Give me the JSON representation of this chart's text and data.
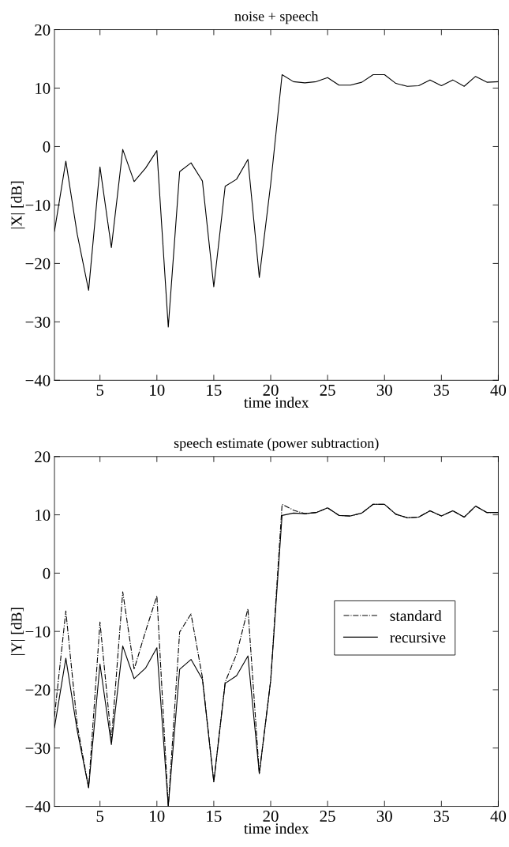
{
  "chart_data": [
    {
      "type": "line",
      "title": "noise + speech",
      "xlabel": "time index",
      "ylabel": "|X| [dB]",
      "x": [
        1,
        2,
        3,
        4,
        5,
        6,
        7,
        8,
        9,
        10,
        11,
        12,
        13,
        14,
        15,
        16,
        17,
        18,
        19,
        20,
        21,
        22,
        23,
        24,
        25,
        26,
        27,
        28,
        29,
        30,
        31,
        32,
        33,
        34,
        35,
        36,
        37,
        38,
        39,
        40
      ],
      "series": [
        {
          "color": "#000000",
          "line_style": "solid",
          "values": [
            -14.5,
            -2.5,
            -15,
            -24.6,
            -3.5,
            -17.3,
            -0.5,
            -6,
            -3.7,
            -0.7,
            -30.9,
            -4.3,
            -2.8,
            -5.9,
            -24,
            -6.8,
            -5.6,
            -2.2,
            -22.4,
            -6.4,
            12.3,
            11.1,
            10.9,
            11.1,
            11.8,
            10.5,
            10.5,
            11.0,
            12.3,
            12.3,
            10.8,
            10.3,
            10.4,
            11.4,
            10.4,
            11.4,
            10.3,
            12.0,
            11.0,
            11.1
          ]
        }
      ],
      "xlim": [
        1,
        40
      ],
      "xticks": [
        5,
        10,
        15,
        20,
        25,
        30,
        35,
        40
      ],
      "ylim": [
        -40,
        20
      ],
      "yticks": [
        -40,
        -30,
        -20,
        -10,
        0,
        10,
        20
      ],
      "grid": false,
      "legend": false
    },
    {
      "type": "line",
      "title": "speech estimate (power subtraction)",
      "xlabel": "time index",
      "ylabel": "|Y| [dB]",
      "x": [
        1,
        2,
        3,
        4,
        5,
        6,
        7,
        8,
        9,
        10,
        11,
        12,
        13,
        14,
        15,
        16,
        17,
        18,
        19,
        20,
        21,
        22,
        23,
        24,
        25,
        26,
        27,
        28,
        29,
        30,
        31,
        32,
        33,
        34,
        35,
        36,
        37,
        38,
        39,
        40
      ],
      "series": [
        {
          "name": "standard",
          "color": "#000000",
          "line_style": "dashdot",
          "values": [
            -24.6,
            -6.5,
            -26,
            -36.8,
            -8.4,
            -28.7,
            -3.2,
            -16.5,
            -10,
            -3.9,
            -40,
            -10.1,
            -7,
            -17.9,
            -35.8,
            -18.7,
            -13.9,
            -6.1,
            -34.4,
            -18.4,
            11.8,
            10.8,
            10.2,
            10.4,
            11.2,
            9.9,
            9.8,
            10.3,
            11.8,
            11.8,
            10.1,
            9.5,
            9.6,
            10.7,
            9.8,
            10.7,
            9.6,
            11.5,
            10.4,
            10.4
          ]
        },
        {
          "name": "recursive",
          "color": "#000000",
          "line_style": "solid",
          "values": [
            -26.5,
            -14.6,
            -27,
            -36.8,
            -15.6,
            -29.4,
            -12.5,
            -18.1,
            -16.3,
            -12.8,
            -40,
            -16.5,
            -14.8,
            -18.2,
            -35.8,
            -18.9,
            -17.6,
            -14.2,
            -34.4,
            -18.4,
            9.9,
            10.3,
            10.2,
            10.4,
            11.2,
            9.9,
            9.8,
            10.3,
            11.8,
            11.8,
            10.1,
            9.5,
            9.6,
            10.7,
            9.8,
            10.7,
            9.6,
            11.5,
            10.4,
            10.4
          ]
        }
      ],
      "xlim": [
        1,
        40
      ],
      "xticks": [
        5,
        10,
        15,
        20,
        25,
        30,
        35,
        40
      ],
      "ylim": [
        -40,
        20
      ],
      "yticks": [
        -40,
        -30,
        -20,
        -10,
        0,
        10,
        20
      ],
      "grid": false,
      "legend": "right"
    }
  ]
}
